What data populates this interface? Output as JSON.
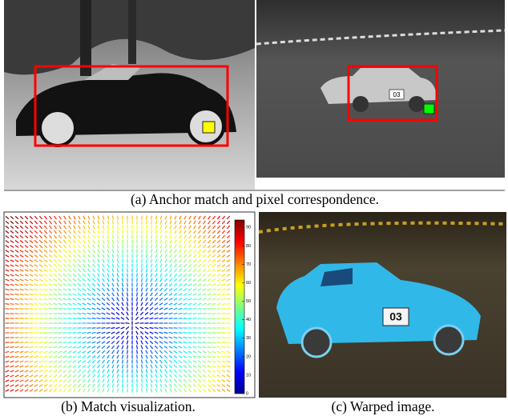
{
  "figure": {
    "captions": [
      "(a) Anchor match and pixel correspondence.",
      "(b) Match visualization.",
      "(c) Warped image."
    ],
    "plates": [
      "03",
      "03"
    ],
    "colorbar": {
      "clim": [
        0,
        94
      ],
      "ticks": [
        0,
        10,
        20,
        30,
        40,
        50,
        60,
        70,
        80,
        90
      ]
    }
  }
}
